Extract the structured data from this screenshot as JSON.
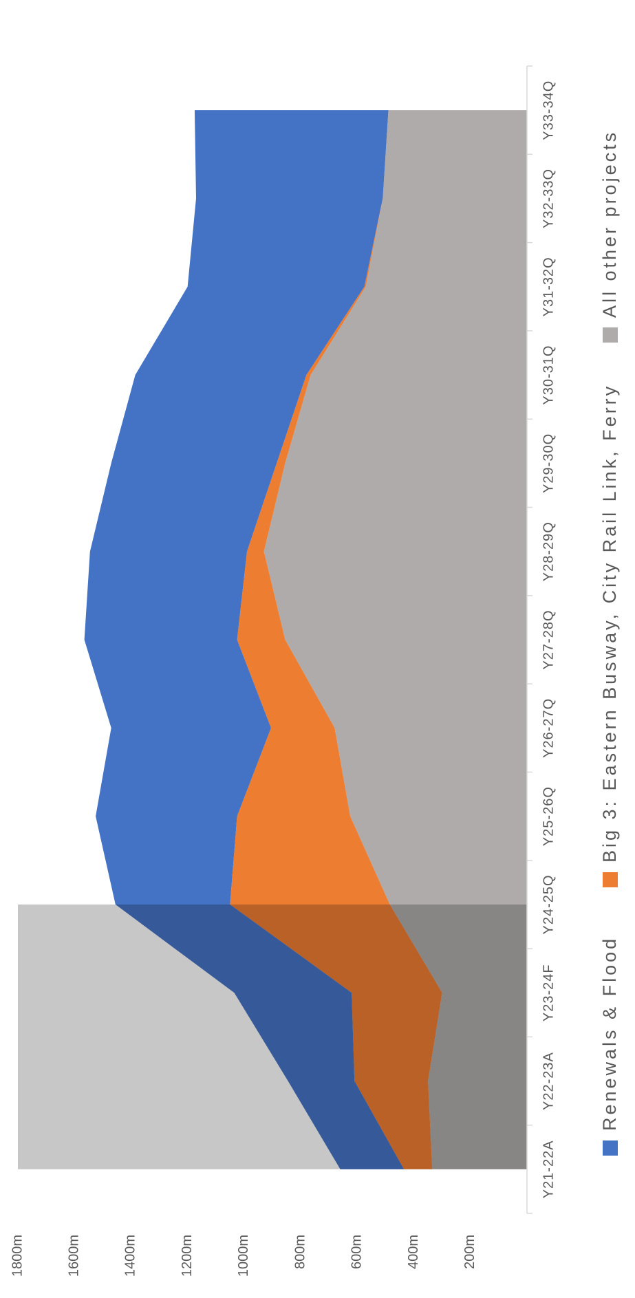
{
  "chart_data": {
    "type": "area",
    "stacked": true,
    "categories": [
      "Y21-22A",
      "Y22-23A",
      "Y23-24F",
      "Y24-25Q",
      "Y25-26Q",
      "Y26-27Q",
      "Y27-28Q",
      "Y28-29Q",
      "Y29-30Q",
      "Y30-31Q",
      "Y31-32Q",
      "Y32-33Q",
      "Y33-34Q"
    ],
    "series": [
      {
        "name": "Renewals & Flood",
        "color": "#4472c4",
        "values": [
          225,
          235,
          415,
          405,
          500,
          565,
          540,
          555,
          585,
          605,
          625,
          660,
          685
        ]
      },
      {
        "name": "Big 3: Eastern Busway, City Rail Link, Ferry",
        "color": "#ed7d31",
        "values": [
          100,
          260,
          320,
          565,
          400,
          225,
          170,
          60,
          30,
          15,
          5,
          0,
          0
        ]
      },
      {
        "name": "All other projects",
        "color": "#afabab",
        "values": [
          335,
          350,
          300,
          485,
          625,
          680,
          855,
          930,
          855,
          765,
          570,
          510,
          490
        ]
      }
    ],
    "ylim": [
      0,
      1800
    ],
    "yticks": [
      {
        "value": 200,
        "label": "200m"
      },
      {
        "value": 400,
        "label": "400m"
      },
      {
        "value": 600,
        "label": "600m"
      },
      {
        "value": 800,
        "label": "800m"
      },
      {
        "value": 1000,
        "label": "1000m"
      },
      {
        "value": 1200,
        "label": "1200m"
      },
      {
        "value": 1400,
        "label": "1400m"
      },
      {
        "value": 1600,
        "label": "1600m"
      },
      {
        "value": 1800,
        "label": "1800m"
      }
    ],
    "grid": false,
    "legend": "bottom"
  }
}
